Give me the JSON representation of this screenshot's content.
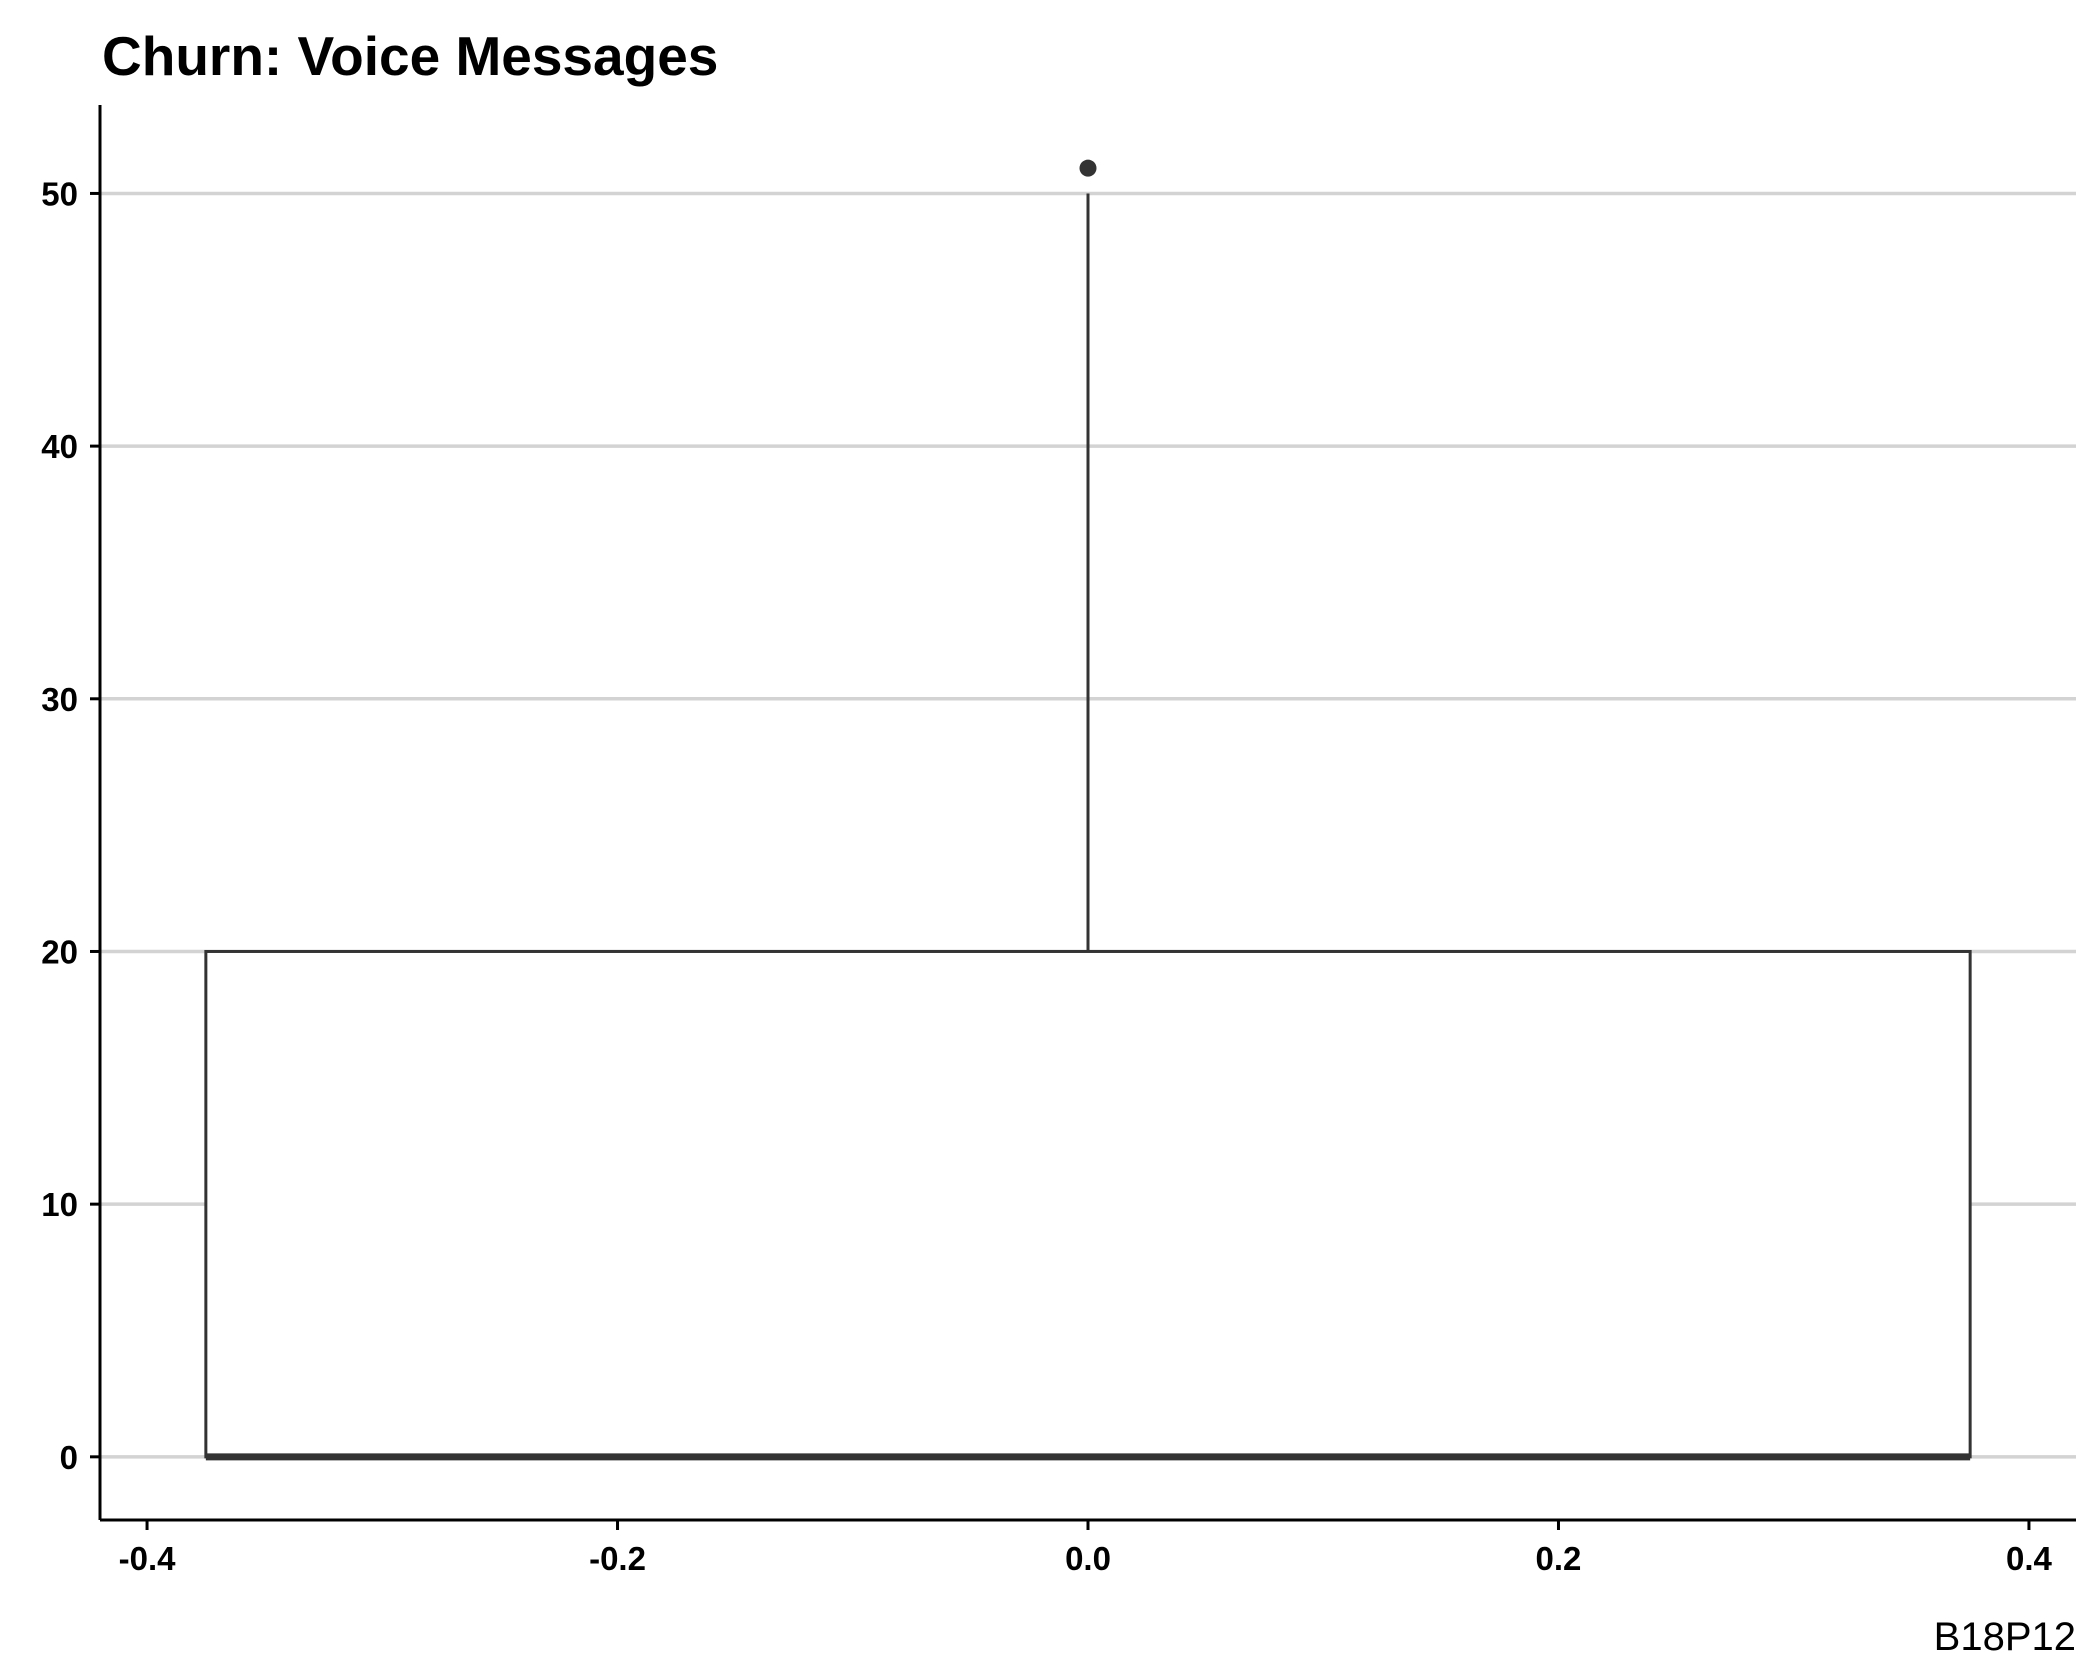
{
  "chart_data": {
    "type": "boxplot",
    "title": "Churn: Voice Messages",
    "caption": "B18P12",
    "xlabel": "",
    "ylabel": "",
    "xlim": [
      -0.42,
      0.42
    ],
    "ylim": [
      -2.5,
      53.5
    ],
    "x_ticks": [
      -0.4,
      -0.2,
      0.0,
      0.2,
      0.4
    ],
    "x_tick_labels": [
      "-0.4",
      "-0.2",
      "0.0",
      "0.2",
      "0.4"
    ],
    "y_ticks": [
      0,
      10,
      20,
      30,
      40,
      50
    ],
    "y_tick_labels": [
      "0",
      "10",
      "20",
      "30",
      "40",
      "50"
    ],
    "grid": "horizontal major",
    "box": {
      "x_center": 0.0,
      "x_left": -0.375,
      "x_right": 0.375,
      "min": 0,
      "q1": 0,
      "median": 0,
      "q3": 20,
      "whisker_low": 0,
      "whisker_high": 50,
      "outliers": [
        51
      ]
    },
    "colors": {
      "box_stroke": "#333333",
      "box_fill": "#ffffff",
      "grid": "#d3d3d3",
      "axis": "#000000",
      "outlier": "#333333"
    }
  }
}
